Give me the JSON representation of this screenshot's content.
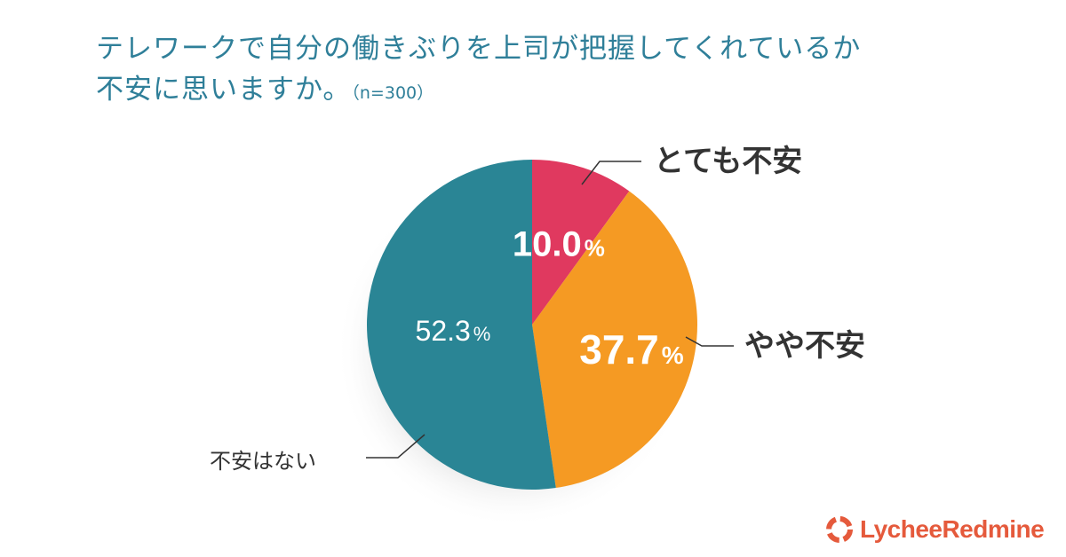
{
  "title": {
    "line1": "テレワークで自分の働きぶりを上司が把握してくれているか",
    "line2": "不安に思いますか。",
    "n_note": "（n=300）"
  },
  "chart_data": {
    "type": "pie",
    "start_angle_deg": 0,
    "direction": "clockwise",
    "slices": [
      {
        "label": "とても不安",
        "value": 10.0,
        "display": "10.0",
        "color": "#e0395f"
      },
      {
        "label": "やや不安",
        "value": 37.7,
        "display": "37.7",
        "color": "#f59a23"
      },
      {
        "label": "不安はない",
        "value": 52.3,
        "display": "52.3",
        "color": "#2a8595"
      }
    ],
    "unit": "%"
  },
  "colors": {
    "title": "#2f7f99",
    "label": "#333333",
    "leader": "#333333",
    "logo": "#e55a3c"
  },
  "logo": {
    "text": "LycheeRedmine",
    "icon": "lychee-ring-icon"
  }
}
